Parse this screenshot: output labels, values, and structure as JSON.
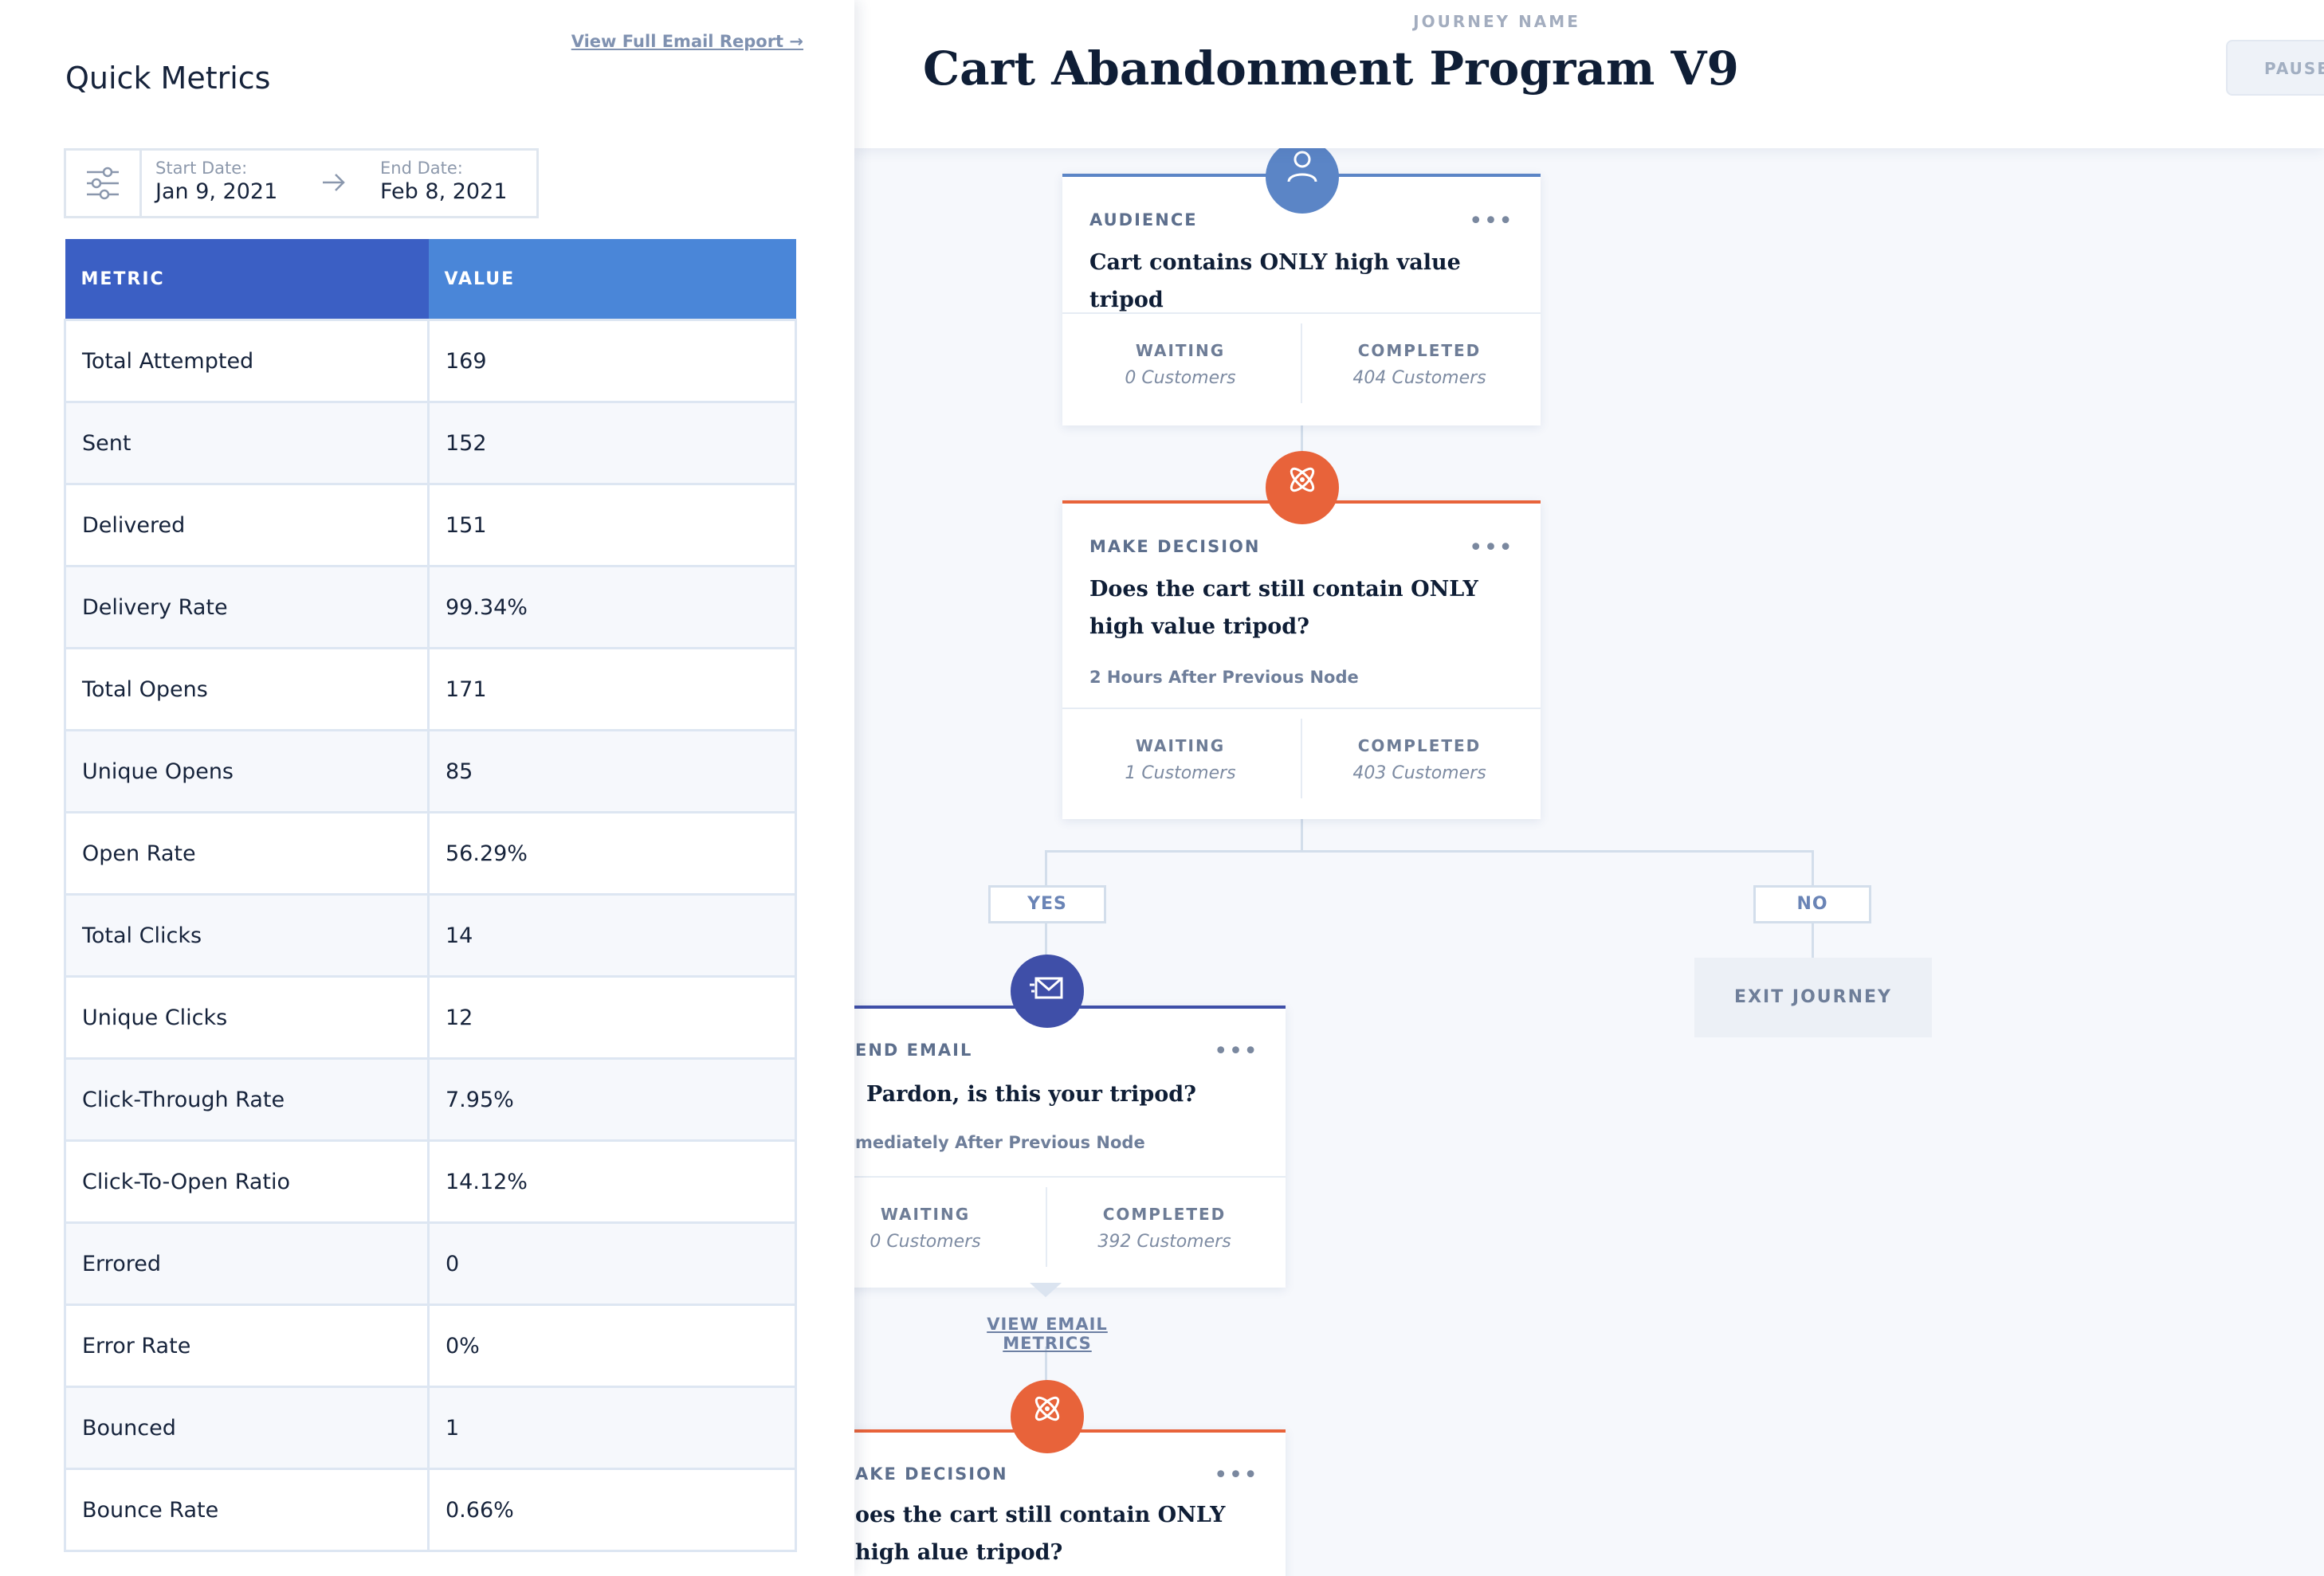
{
  "metrics_panel": {
    "title": "Quick Metrics",
    "report_link": "View Full Email Report →",
    "start_date_label": "Start Date:",
    "start_date": "Jan 9, 2021",
    "end_date_label": "End Date:",
    "end_date": "Feb 8, 2021",
    "table_headers": [
      "METRIC",
      "VALUE"
    ],
    "rows": [
      {
        "metric": "Total Attempted",
        "value": "169"
      },
      {
        "metric": "Sent",
        "value": "152"
      },
      {
        "metric": "Delivered",
        "value": "151"
      },
      {
        "metric": "Delivery Rate",
        "value": "99.34%"
      },
      {
        "metric": "Total Opens",
        "value": "171"
      },
      {
        "metric": "Unique Opens",
        "value": "85"
      },
      {
        "metric": "Open Rate",
        "value": "56.29%"
      },
      {
        "metric": "Total Clicks",
        "value": "14"
      },
      {
        "metric": "Unique Clicks",
        "value": "12"
      },
      {
        "metric": "Click-Through Rate",
        "value": "7.95%"
      },
      {
        "metric": "Click-To-Open Ratio",
        "value": "14.12%"
      },
      {
        "metric": "Errored",
        "value": "0"
      },
      {
        "metric": "Error Rate",
        "value": "0%"
      },
      {
        "metric": "Bounced",
        "value": "1"
      },
      {
        "metric": "Bounce Rate",
        "value": "0.66%"
      }
    ]
  },
  "journey": {
    "label": "JOURNEY NAME",
    "name": "Cart Abandonment Program V9",
    "pause_label": "PAUSE",
    "nodes": {
      "audience": {
        "type": "AUDIENCE",
        "text": "Cart contains ONLY high value tripod",
        "waiting_label": "WAITING",
        "waiting": "0 Customers",
        "completed_label": "COMPLETED",
        "completed": "404 Customers"
      },
      "decision1": {
        "type": "MAKE DECISION",
        "text": "Does the cart still contain ONLY high value tripod?",
        "timing": "2 Hours After Previous Node",
        "waiting_label": "WAITING",
        "waiting": "1 Customers",
        "completed_label": "COMPLETED",
        "completed": "403 Customers"
      },
      "email": {
        "type": "END EMAIL",
        "text": "Pardon, is this your tripod?",
        "timing": "mediately After Previous Node",
        "waiting_label": "WAITING",
        "waiting": "0 Customers",
        "completed_label": "COMPLETED",
        "completed": "392 Customers"
      },
      "decision2": {
        "type": "AKE DECISION",
        "text": "oes the cart still contain ONLY high alue tripod?"
      }
    },
    "yes_label": "YES",
    "no_label": "NO",
    "exit_label": "EXIT JOURNEY",
    "view_email_metrics": "VIEW EMAIL METRICS"
  },
  "colors": {
    "audience": "#5b85c6",
    "decision": "#e8633a",
    "email": "#3f4fa8",
    "table_header_metric": "#3b5fc4",
    "table_header_value": "#4a86d8"
  },
  "icons": [
    "filter-sliders-icon",
    "arrow-right-icon",
    "user-icon",
    "decision-atom-icon",
    "send-email-icon",
    "more-dots-icon"
  ]
}
